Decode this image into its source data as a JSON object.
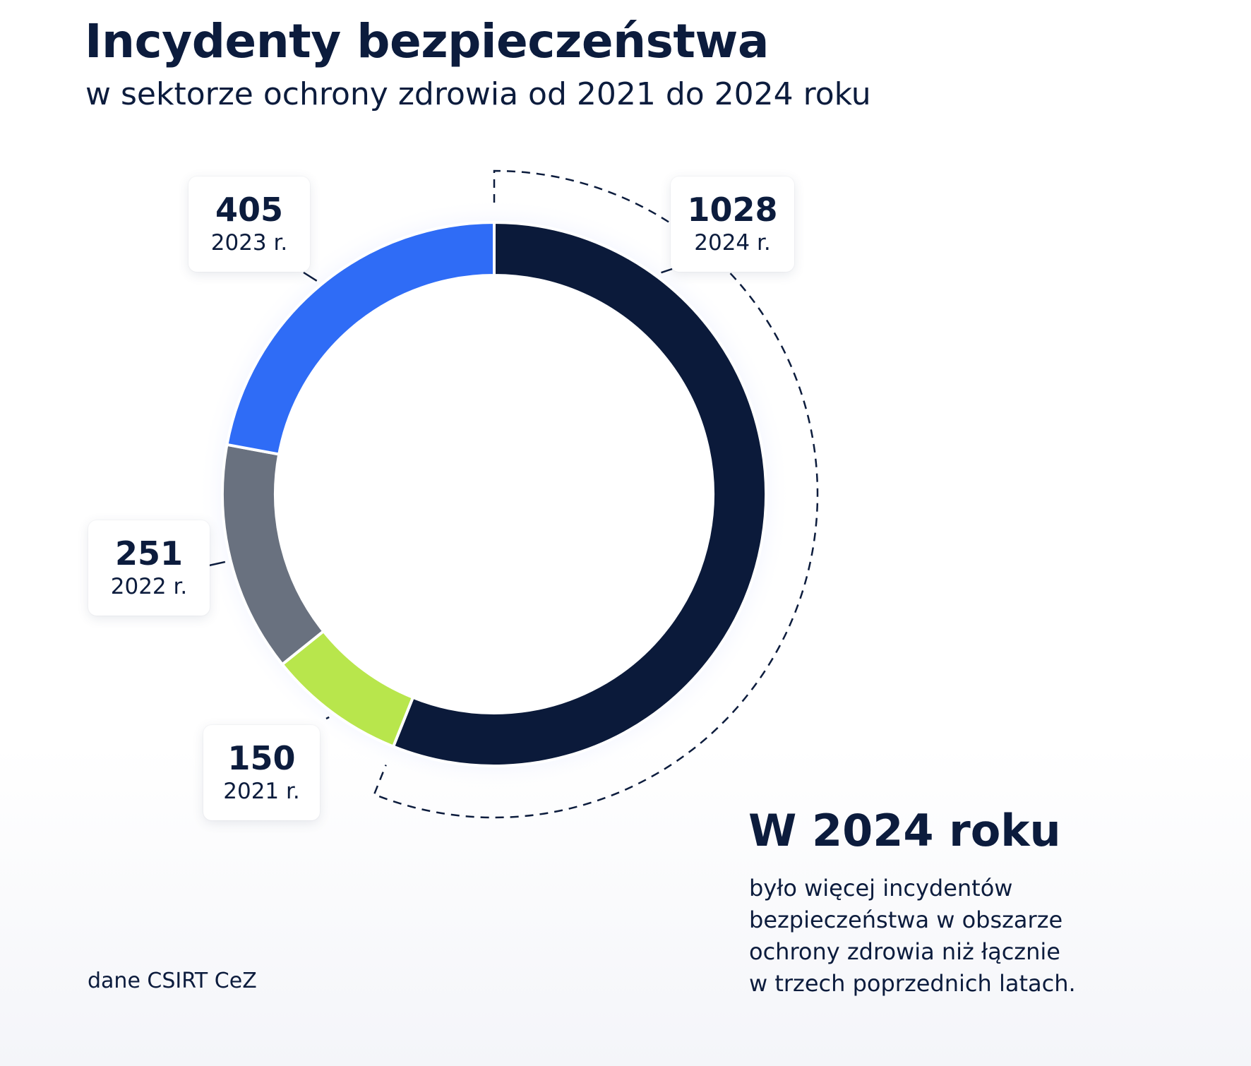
{
  "header": {
    "title": "Incydenty bezpieczeństwa",
    "subtitle": "w sektorze ochrony zdrowia od 2021 do 2024 roku"
  },
  "chart_data": {
    "type": "pie",
    "variant": "donut",
    "title": "Incydenty bezpieczeństwa",
    "subtitle": "w sektorze ochrony zdrowia od 2021 do 2024 roku",
    "slices": [
      {
        "year_label": "2024 r.",
        "value": 1028,
        "color": "#0b1a3a"
      },
      {
        "year_label": "2021 r.",
        "value": 150,
        "color": "#b8e64c"
      },
      {
        "year_label": "2022 r.",
        "value": 251,
        "color": "#69717f"
      },
      {
        "year_label": "2023 r.",
        "value": 405,
        "color": "#2f6cf6"
      }
    ]
  },
  "callout": {
    "title": "W 2024 roku",
    "lines": [
      "było więcej incydentów",
      "bezpieczeństwa w obszarze",
      "ochrony zdrowia niż łącznie",
      "w trzech poprzednich latach."
    ]
  },
  "source": "dane CSIRT CeZ"
}
